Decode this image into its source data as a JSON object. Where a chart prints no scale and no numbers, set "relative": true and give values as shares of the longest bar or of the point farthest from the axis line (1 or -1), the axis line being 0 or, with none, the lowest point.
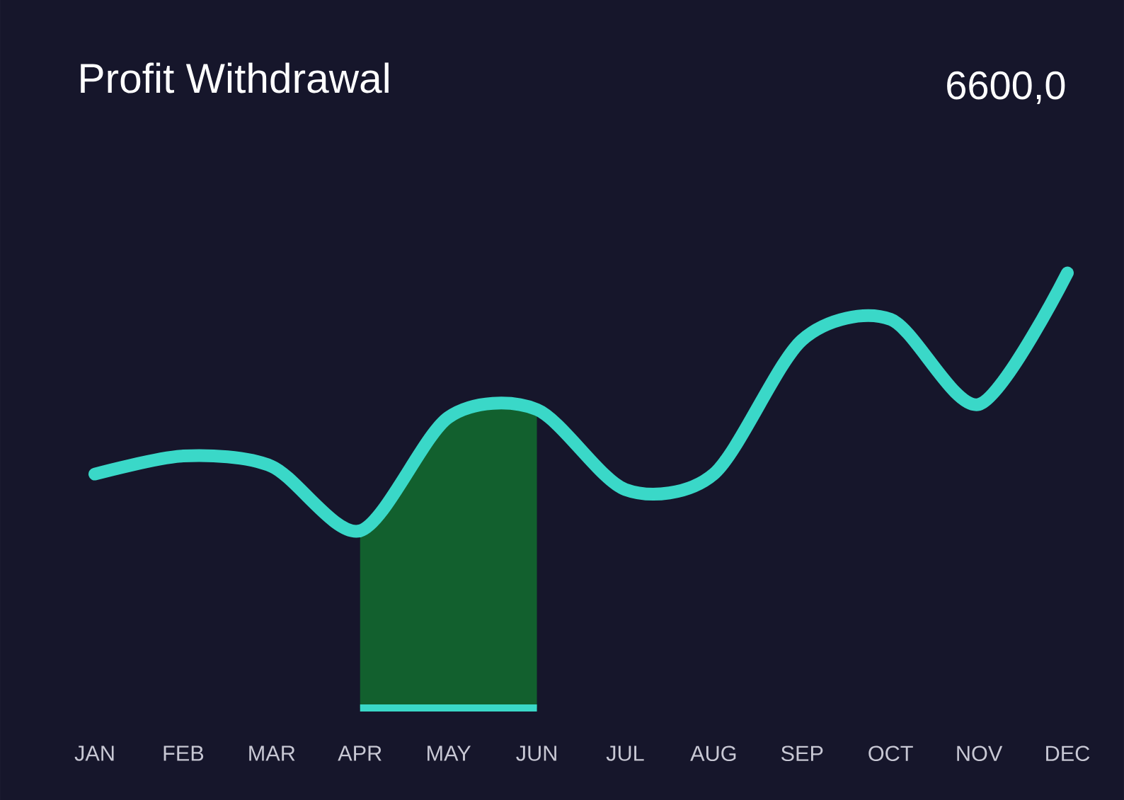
{
  "chart_data": {
    "type": "line",
    "title": "Profit Withdrawal",
    "annotations": [
      "6600,0"
    ],
    "relative": true,
    "categories": [
      "JAN",
      "FEB",
      "MAR",
      "APR",
      "MAY",
      "JUN",
      "JUL",
      "AUG",
      "SEP",
      "OCT",
      "NOV",
      "DEC"
    ],
    "series": [
      {
        "color": "#3ad8c8",
        "values": [
          0.22,
          0.29,
          0.25,
          0,
          0.44,
          0.47,
          0.16,
          0.22,
          0.74,
          0.82,
          0.49,
          1
        ]
      }
    ],
    "bands": [
      {
        "axis": "x",
        "from": "APR",
        "to": "JUN",
        "color": "#12602e"
      }
    ],
    "marker": "none",
    "line_style": "solid"
  }
}
